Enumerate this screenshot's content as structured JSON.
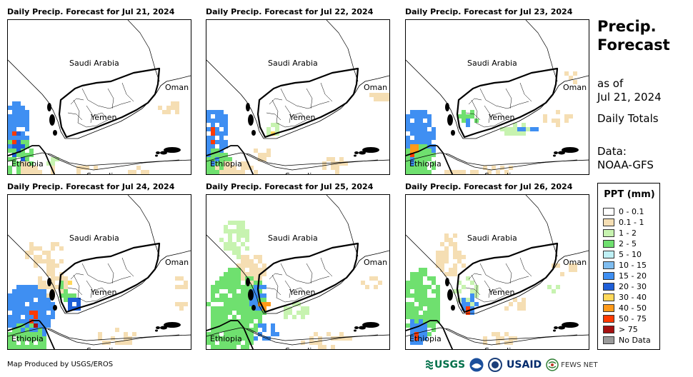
{
  "panels": [
    {
      "title": "Daily Precip. Forecast for Jul 21, 2024",
      "day_index": 0
    },
    {
      "title": "Daily Precip. Forecast for Jul 22, 2024",
      "day_index": 1
    },
    {
      "title": "Daily Precip. Forecast for Jul 23, 2024",
      "day_index": 2
    },
    {
      "title": "Daily Precip. Forecast for Jul 24, 2024",
      "day_index": 3
    },
    {
      "title": "Daily Precip. Forecast for Jul 25, 2024",
      "day_index": 4
    },
    {
      "title": "Daily Precip. Forecast for Jul 26, 2024",
      "day_index": 5
    }
  ],
  "country_labels": {
    "saudi_arabia": "Saudi Arabia",
    "oman": "Oman",
    "yemen": "Yemen",
    "ethiopia": "Ethiopia",
    "somalia": "Somalia"
  },
  "side": {
    "title_line1": "Precip.",
    "title_line2": "Forecast",
    "as_of_line1": "as of",
    "as_of_line2": "Jul 21, 2024",
    "totals": "Daily Totals",
    "data_line1": "Data:",
    "data_line2": "NOAA-GFS"
  },
  "legend": {
    "title": "PPT (mm)",
    "items": [
      {
        "label": "0 - 0.1",
        "color": "#ffffff"
      },
      {
        "label": "0.1 - 1",
        "color": "#f5deb3"
      },
      {
        "label": "1 - 2",
        "color": "#c7f3b0"
      },
      {
        "label": "2 - 5",
        "color": "#6fe06f"
      },
      {
        "label": "5 - 10",
        "color": "#bff0f5"
      },
      {
        "label": "10 - 15",
        "color": "#7fbdf0"
      },
      {
        "label": "15 - 20",
        "color": "#3f8ff2"
      },
      {
        "label": "20 - 30",
        "color": "#1f5fd8"
      },
      {
        "label": "30 - 40",
        "color": "#ffd85a"
      },
      {
        "label": "40 - 50",
        "color": "#ff9a1a"
      },
      {
        "label": "50 - 75",
        "color": "#ff3a00"
      },
      {
        "label": "> 75",
        "color": "#a51010"
      },
      {
        "label": "No Data",
        "color": "#9a9a9a"
      }
    ]
  },
  "credit": "Map Produced by USGS/EROS",
  "logos": {
    "usgs": "USGS",
    "usaid": "USAID",
    "fewsnet": "FEWS NET"
  }
}
